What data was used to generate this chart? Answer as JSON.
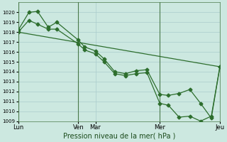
{
  "bg_color": "#cce8e0",
  "grid_color": "#aacccc",
  "line_color": "#2d6e2d",
  "marker_color": "#2d6e2d",
  "xlabel": "Pression niveau de la mer( hPa )",
  "ylim": [
    1009,
    1021
  ],
  "yticks": [
    1009,
    1010,
    1011,
    1012,
    1013,
    1014,
    1015,
    1016,
    1017,
    1018,
    1019,
    1020
  ],
  "xtick_labels": [
    "Lun",
    "Ven",
    "Mar",
    "Mer",
    "Jeu"
  ],
  "xtick_positions": [
    0,
    28,
    36,
    66,
    94
  ],
  "vline_positions": [
    0,
    28,
    66,
    94
  ],
  "xlim": [
    0,
    94
  ],
  "series1_x": [
    0,
    94
  ],
  "series1_y": [
    1018.0,
    1014.5
  ],
  "series2_x": [
    0,
    5,
    9,
    14,
    18,
    28,
    31,
    36,
    40,
    45,
    50,
    55,
    60,
    66,
    70,
    75,
    80,
    85,
    90,
    94
  ],
  "series2_y": [
    1018.2,
    1020.0,
    1020.1,
    1018.5,
    1019.0,
    1017.2,
    1016.5,
    1016.1,
    1015.3,
    1014.0,
    1013.8,
    1014.1,
    1014.2,
    1011.7,
    1011.6,
    1011.8,
    1012.2,
    1010.8,
    1009.3,
    1014.5
  ],
  "series3_x": [
    0,
    5,
    9,
    14,
    18,
    28,
    31,
    36,
    40,
    45,
    50,
    55,
    60,
    66,
    70,
    75,
    80,
    85,
    90,
    94
  ],
  "series3_y": [
    1018.0,
    1019.2,
    1018.8,
    1018.3,
    1018.3,
    1016.8,
    1016.2,
    1015.8,
    1015.0,
    1013.8,
    1013.6,
    1013.8,
    1013.9,
    1010.8,
    1010.6,
    1009.4,
    1009.5,
    1009.0,
    1009.5,
    1014.5
  ],
  "vline_color": "#4a7a4a",
  "spine_color": "#4a7a4a",
  "xlabel_fontsize": 7,
  "ytick_fontsize": 5,
  "xtick_fontsize": 6
}
